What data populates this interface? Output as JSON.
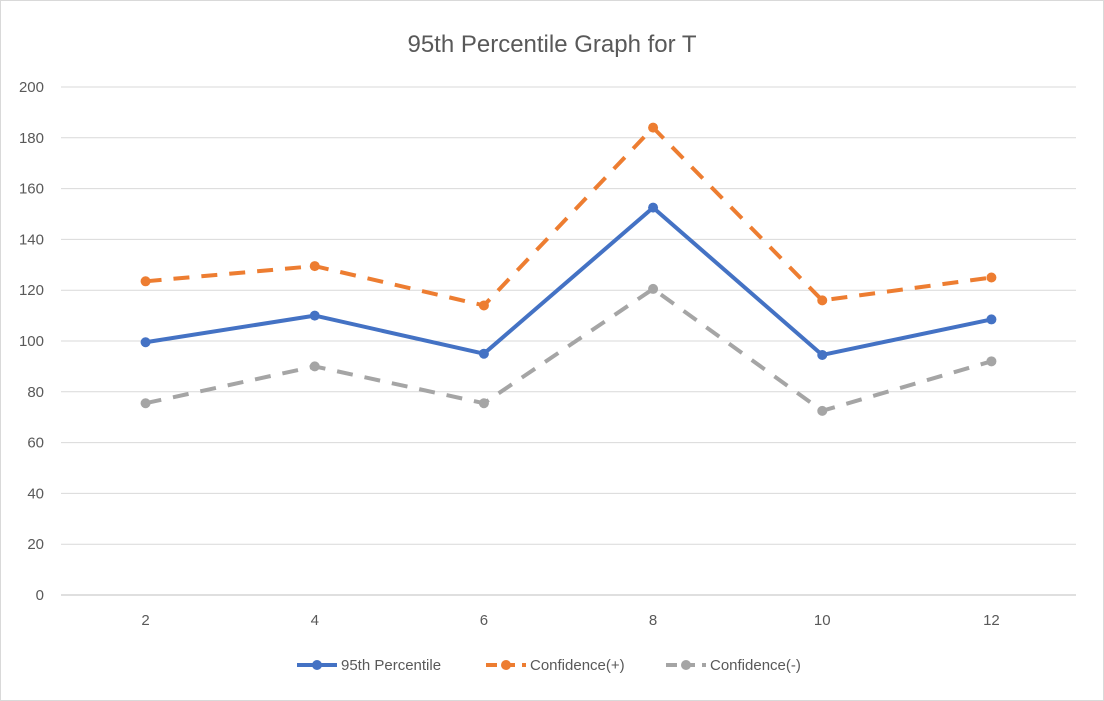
{
  "chart_data": {
    "type": "line",
    "title": "95th Percentile Graph for T",
    "xlabel": "",
    "ylabel": "",
    "x": [
      2,
      4,
      6,
      8,
      10,
      12
    ],
    "ylim": [
      0,
      200
    ],
    "yticks": [
      0,
      20,
      40,
      60,
      80,
      100,
      120,
      140,
      160,
      180,
      200
    ],
    "grid": true,
    "legend_position": "bottom",
    "series": [
      {
        "name": "95th Percentile",
        "values": [
          99.5,
          110,
          95,
          152.5,
          94.5,
          108.5
        ],
        "color": "#4472c4",
        "dash": "solid"
      },
      {
        "name": "Confidence(+)",
        "values": [
          123.5,
          129.5,
          114,
          184,
          116,
          125
        ],
        "color": "#ed7d31",
        "dash": "dashed"
      },
      {
        "name": "Confidence(-)",
        "values": [
          75.5,
          90,
          75.5,
          120.5,
          72.5,
          92
        ],
        "color": "#a5a5a5",
        "dash": "dashed"
      }
    ]
  }
}
